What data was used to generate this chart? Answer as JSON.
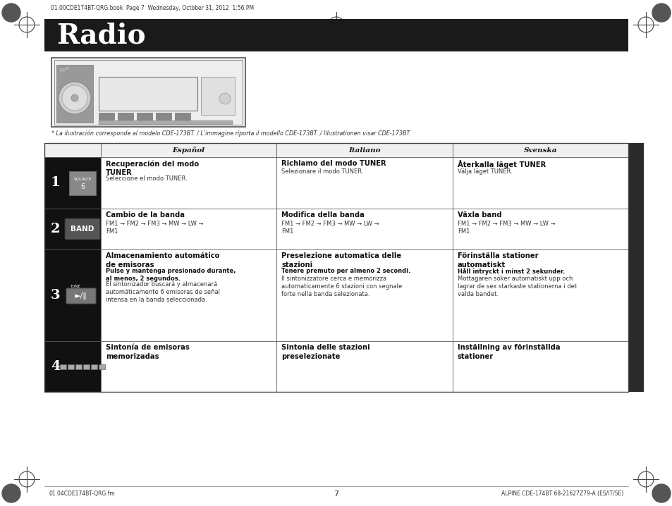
{
  "title": "Radio",
  "title_bg": "#1a1a1a",
  "title_color": "#ffffff",
  "page_bg": "#ffffff",
  "header_top_text": "01.00CDE174BT-QRG.book  Page 7  Wednesday, October 31, 2012  1:56 PM",
  "footer_left": "01.04CDE174BT-QRG.fm",
  "footer_right": "ALPINE CDE-174BT 68-21627Z79-A (ES/IT/SE)",
  "footer_center": "7",
  "caption": "* La ilustración corresponde al modelo CDE-173BT. / L'immagine riporta il modello CDE-173BT. / Illustrationen visar CDE-173BT.",
  "col_headers": [
    "Español",
    "Italiano",
    "Svenska"
  ],
  "rows": [
    {
      "num": "1",
      "esp_title": "Recuperación del modo\nTUNER",
      "esp_bold": "",
      "esp_body": "Seleccione el modo TUNER.",
      "ita_title": "Richiamo del modo TUNER",
      "ita_bold": "",
      "ita_body": "Selezionare il modo TUNER.",
      "sve_title": "Återkalla läget TUNER",
      "sve_bold": "",
      "sve_body": "Välja läget TUNER."
    },
    {
      "num": "2",
      "esp_title": "Cambio de la banda",
      "esp_bold": "",
      "esp_body": "FM1 → FM2 → FM3 → MW → LW →\nFM1",
      "ita_title": "Modifica della banda",
      "ita_bold": "",
      "ita_body": "FM1 → FM2 → FM3 → MW → LW →\nFM1",
      "sve_title": "Växla band",
      "sve_bold": "",
      "sve_body": "FM1 → FM2 → FM3 → MW → LW →\nFM1"
    },
    {
      "num": "3",
      "esp_title": "Almacenamiento automático\nde emisoras",
      "esp_bold": "Pulse y mantenga presionado durante,\nal menos, 2 segundos.",
      "esp_body": "El sintonizador buscará y almacenará\nautomáticamente 6 emisoras de señal\nintensa en la banda seleccionada.",
      "ita_title": "Preselezione automatica delle\nstazioni",
      "ita_bold": "Tenere premuto per almeno 2 secondi.",
      "ita_body": "Il sintonizzatore cerca e memorizza\nautomaticamente 6 stazioni con segnale\nforte nella banda selezionata.",
      "sve_title": "Förinställa stationer\nautomatiskt",
      "sve_bold": "Håll intryckt i minst 2 sekunder.",
      "sve_body": "Mottagaren söker automatiskt upp och\nlagrar de sex starkaste stationerna i det\nvalda bandet."
    },
    {
      "num": "4",
      "esp_title": "Sintonía de emisoras\nmemorizadas",
      "esp_bold": "",
      "esp_body": "",
      "ita_title": "Sintonia delle stazioni\npreselezionate",
      "ita_bold": "",
      "ita_body": "",
      "sve_title": "Inställning av förinställda\nstationer",
      "sve_bold": "",
      "sve_body": ""
    }
  ]
}
